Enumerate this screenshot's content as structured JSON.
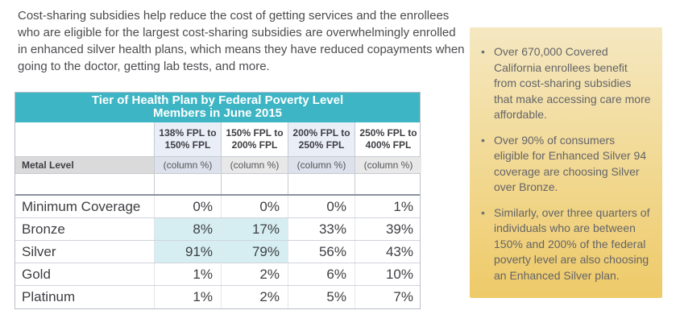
{
  "colors": {
    "teal_header": "#3DB5C4",
    "header_alt_blue": "#E9EEF7",
    "metal_level_gray": "#DADADA",
    "subheader_blue_gray": "#DCE1EB",
    "subheader_gray": "#E8E8E8",
    "highlight_cyan": "#D6EEF2",
    "sidebar_gradient_top": "#F5E8C1",
    "sidebar_gradient_bottom": "#EECA68",
    "body_text": "#4C4C50",
    "table_text": "#3E3E43",
    "sidebar_text": "#646468"
  },
  "intro": {
    "text": "Cost-sharing subsidies help reduce the cost of getting services and the enrollees who are eligible for the largest cost-sharing subsidies are overwhelmingly enrolled in enhanced silver health plans, which means they have reduced copayments when going to the doctor, getting lab tests, and more."
  },
  "table": {
    "title_line1": "Tier of Health Plan by Federal Poverty Level",
    "title_line2": "Members in June 2015",
    "metal_level_label": "Metal Level",
    "columns": [
      "138% FPL to\n150% FPL",
      "150% FPL to\n200% FPL",
      "200% FPL to\n250% FPL",
      "250% FPL to\n400% FPL"
    ],
    "subheaders": [
      "(column %)",
      "(column %)",
      "(column %)",
      "(column %)"
    ],
    "rows": [
      {
        "label": "Minimum Coverage",
        "values": [
          "0%",
          "0%",
          "0%",
          "1%"
        ],
        "highlight": [
          false,
          false,
          false,
          false
        ]
      },
      {
        "label": "Bronze",
        "values": [
          "8%",
          "17%",
          "33%",
          "39%"
        ],
        "highlight": [
          true,
          true,
          false,
          false
        ]
      },
      {
        "label": "Silver",
        "values": [
          "91%",
          "79%",
          "56%",
          "43%"
        ],
        "highlight": [
          true,
          true,
          false,
          false
        ]
      },
      {
        "label": "Gold",
        "values": [
          "1%",
          "2%",
          "6%",
          "10%"
        ],
        "highlight": [
          false,
          false,
          false,
          false
        ]
      },
      {
        "label": "Platinum",
        "values": [
          "1%",
          "2%",
          "5%",
          "7%"
        ],
        "highlight": [
          false,
          false,
          false,
          false
        ]
      }
    ]
  },
  "sidebar": {
    "bullet_glyph": "•",
    "bullets": [
      "Over 670,000 Covered California enrollees benefit from cost-sharing subsidies that make accessing care more affordable.",
      "Over 90% of consumers eligible for Enhanced Silver 94 coverage are choosing Silver over Bronze.",
      "Similarly, over three quarters of individuals who are between 150% and 200% of the federal poverty level are also choosing an Enhanced Silver plan."
    ]
  }
}
